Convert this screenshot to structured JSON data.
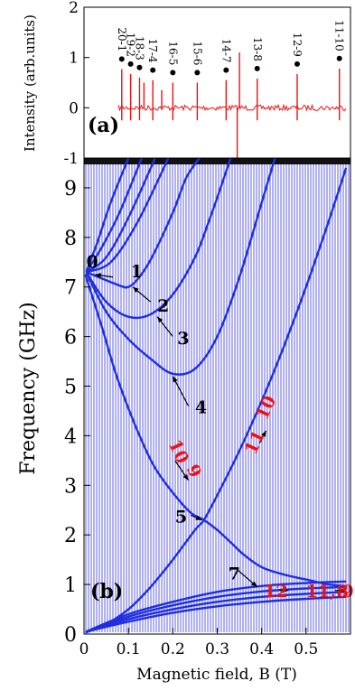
{
  "chart_data": [
    {
      "panel": "(a)",
      "type": "line",
      "ylabel": "Intensity (arb.units)",
      "xlim": [
        0,
        0.6
      ],
      "ylim": [
        -1,
        2
      ],
      "yticks": [
        "2",
        "1",
        "0",
        "-1"
      ],
      "ytick_values": [
        2,
        1,
        0,
        -1
      ],
      "grid": false,
      "color": "#ee1111",
      "marker_color": "#000000",
      "peaks": [
        {
          "label": "20-1",
          "x": 0.085,
          "y": 0.97
        },
        {
          "label": "19-2",
          "x": 0.105,
          "y": 0.87
        },
        {
          "label": "18-3",
          "x": 0.125,
          "y": 0.8
        },
        {
          "label": "17-4",
          "x": 0.155,
          "y": 0.75
        },
        {
          "label": "16-5",
          "x": 0.2,
          "y": 0.7
        },
        {
          "label": "15-6",
          "x": 0.255,
          "y": 0.7
        },
        {
          "label": "14-7",
          "x": 0.32,
          "y": 0.75
        },
        {
          "label": "13-8",
          "x": 0.39,
          "y": 0.78
        },
        {
          "label": "12-9",
          "x": 0.48,
          "y": 0.87
        },
        {
          "label": "11-10",
          "x": 0.575,
          "y": 0.98
        }
      ],
      "extra_spikes": [
        {
          "x": 0.135,
          "y": 0.5
        },
        {
          "x": 0.175,
          "y": 0.35
        },
        {
          "x": 0.35,
          "y": 1.1
        },
        {
          "x": 0.345,
          "y": -1.0
        }
      ]
    },
    {
      "panel": "(b)",
      "type": "line",
      "xlabel": "Magnetic field, B (T)",
      "ylabel": "Frequency (GHz)",
      "xlim": [
        0,
        0.6
      ],
      "ylim": [
        0,
        9.6
      ],
      "xticks": [
        "0",
        "0.1",
        "0.2",
        "0.3",
        "0.4",
        "0.5"
      ],
      "xtick_values": [
        0,
        0.1,
        0.2,
        0.3,
        0.4,
        0.5
      ],
      "yticks": [
        "0",
        "1",
        "2",
        "3",
        "4",
        "5",
        "6",
        "7",
        "8",
        "9"
      ],
      "ytick_values": [
        0,
        1,
        2,
        3,
        4,
        5,
        6,
        7,
        8,
        9
      ],
      "grid": false,
      "background_lines_color": "#3333dd",
      "curve_color": "#1f2fe0",
      "series": [
        {
          "x": [
            0.003,
            0.04,
            0.07,
            0.1,
            0.13,
            0.16,
            0.2,
            0.24,
            0.27,
            0.3,
            0.33,
            0.36,
            0.4,
            0.45,
            0.5,
            0.55,
            0.59
          ],
          "y": [
            7.25,
            6.2,
            5.3,
            4.55,
            3.9,
            3.35,
            2.85,
            2.45,
            2.3,
            2.1,
            1.85,
            1.6,
            1.35,
            1.2,
            1.1,
            1.0,
            0.97
          ]
        },
        {
          "x": [
            0.003,
            0.05,
            0.1,
            0.15,
            0.2,
            0.25,
            0.27,
            0.3,
            0.35,
            0.4,
            0.45,
            0.5,
            0.55,
            0.59
          ],
          "y": [
            0.03,
            0.2,
            0.5,
            0.95,
            1.5,
            2.1,
            2.3,
            2.8,
            3.7,
            4.7,
            5.8,
            7.0,
            8.3,
            9.4
          ]
        },
        {
          "x": [
            0.005,
            0.08,
            0.1,
            0.12,
            0.15,
            0.2,
            0.23,
            0.26
          ],
          "y": [
            7.3,
            7.03,
            7.0,
            7.15,
            7.55,
            8.5,
            9.2,
            9.6
          ]
        },
        {
          "x": [
            0.005,
            0.05,
            0.1,
            0.15,
            0.2,
            0.25,
            0.28,
            0.3,
            0.33
          ],
          "y": [
            7.3,
            6.7,
            6.4,
            6.45,
            6.85,
            7.6,
            8.3,
            8.8,
            9.6
          ]
        },
        {
          "x": [
            0.005,
            0.05,
            0.1,
            0.15,
            0.2,
            0.25,
            0.3,
            0.35,
            0.4,
            0.43
          ],
          "y": [
            7.3,
            6.5,
            5.95,
            5.55,
            5.25,
            5.35,
            6.0,
            7.2,
            8.7,
            9.6
          ]
        },
        {
          "x": [
            0.005,
            0.03,
            0.06,
            0.1
          ],
          "y": [
            7.3,
            7.9,
            8.7,
            9.6
          ]
        },
        {
          "x": [
            0.005,
            0.04,
            0.08,
            0.13
          ],
          "y": [
            7.3,
            7.8,
            8.5,
            9.6
          ]
        },
        {
          "x": [
            0.005,
            0.05,
            0.1,
            0.16
          ],
          "y": [
            7.3,
            7.6,
            8.4,
            9.6
          ]
        },
        {
          "x": [
            0.005,
            0.06,
            0.12,
            0.19
          ],
          "y": [
            7.3,
            7.5,
            8.3,
            9.6
          ]
        },
        {
          "x": [
            0.005,
            0.1,
            0.2,
            0.3,
            0.4,
            0.5,
            0.59
          ],
          "y": [
            0.05,
            0.4,
            0.65,
            0.85,
            0.97,
            1.03,
            1.06
          ]
        },
        {
          "x": [
            0.005,
            0.1,
            0.2,
            0.3,
            0.4,
            0.5,
            0.59
          ],
          "y": [
            0.05,
            0.35,
            0.58,
            0.75,
            0.86,
            0.92,
            0.95
          ]
        },
        {
          "x": [
            0.005,
            0.1,
            0.2,
            0.3,
            0.4,
            0.5,
            0.59
          ],
          "y": [
            0.05,
            0.3,
            0.5,
            0.65,
            0.75,
            0.81,
            0.85
          ]
        },
        {
          "x": [
            0.005,
            0.1,
            0.2,
            0.3,
            0.4,
            0.5,
            0.59
          ],
          "y": [
            0.05,
            0.25,
            0.43,
            0.56,
            0.65,
            0.71,
            0.75
          ]
        }
      ],
      "annotations": [
        {
          "text": "0",
          "x": 0.005,
          "y": 7.4,
          "color": "#000000",
          "rotate": 0
        },
        {
          "text": "1",
          "x": 0.105,
          "y": 7.2,
          "color": "#000000",
          "rotate": 0
        },
        {
          "text": "2",
          "x": 0.165,
          "y": 6.5,
          "color": "#000000",
          "rotate": 0
        },
        {
          "text": "3",
          "x": 0.21,
          "y": 5.85,
          "color": "#000000",
          "rotate": 0
        },
        {
          "text": "4",
          "x": 0.25,
          "y": 4.45,
          "color": "#000000",
          "rotate": 0
        },
        {
          "text": "5",
          "x": 0.205,
          "y": 2.25,
          "color": "#000000",
          "rotate": 0
        },
        {
          "text": "7",
          "x": 0.325,
          "y": 1.1,
          "color": "#000000",
          "rotate": 0
        },
        {
          "text": "10",
          "x": 0.19,
          "y": 3.85,
          "color": "#ee1111",
          "rotate": 65
        },
        {
          "text": "9",
          "x": 0.23,
          "y": 3.35,
          "color": "#ee1111",
          "rotate": 65
        },
        {
          "text": "11",
          "x": 0.385,
          "y": 3.6,
          "color": "#ee1111",
          "rotate": -65
        },
        {
          "text": "10",
          "x": 0.41,
          "y": 4.3,
          "color": "#ee1111",
          "rotate": -65
        },
        {
          "text": "12",
          "x": 0.405,
          "y": 0.75,
          "color": "#ee1111",
          "rotate": 0
        },
        {
          "text": "11, 9",
          "x": 0.5,
          "y": 0.75,
          "color": "#ee1111",
          "rotate": 0
        },
        {
          "text": "8",
          "x": 0.6,
          "y": 0.75,
          "color": "#ee1111",
          "rotate": 0
        }
      ],
      "arrows": [
        {
          "from": [
            0.065,
            7.2
          ],
          "to": [
            0.025,
            7.25
          ],
          "color": "#000000"
        },
        {
          "from": [
            0.15,
            6.7
          ],
          "to": [
            0.11,
            7.0
          ],
          "color": "#000000"
        },
        {
          "from": [
            0.2,
            6.0
          ],
          "to": [
            0.165,
            6.4
          ],
          "color": "#000000"
        },
        {
          "from": [
            0.235,
            4.6
          ],
          "to": [
            0.2,
            5.2
          ],
          "color": "#000000"
        },
        {
          "from": [
            0.24,
            2.4
          ],
          "to": [
            0.265,
            2.3
          ],
          "color": "#000000"
        },
        {
          "from": [
            0.205,
            3.5
          ],
          "to": [
            0.235,
            3.1
          ],
          "color": "#000000"
        },
        {
          "from": [
            0.395,
            3.85
          ],
          "to": [
            0.41,
            4.1
          ],
          "color": "#000000"
        },
        {
          "from": [
            0.345,
            1.3
          ],
          "to": [
            0.39,
            0.95
          ],
          "color": "#000000"
        },
        {
          "from": [
            0.44,
            0.88
          ],
          "to": [
            0.46,
            0.88
          ],
          "color": "#000000"
        },
        {
          "from": [
            0.565,
            0.88
          ],
          "to": [
            0.59,
            0.88
          ],
          "color": "#000000"
        }
      ]
    }
  ]
}
